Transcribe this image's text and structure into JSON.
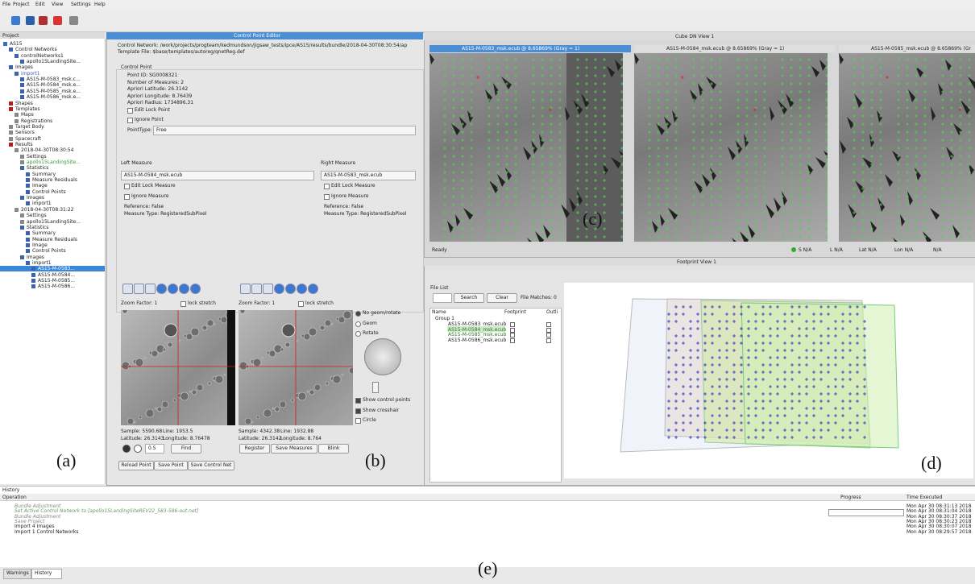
{
  "menu": [
    "File",
    "Project",
    "Edit",
    "View",
    "Settings",
    "Help"
  ],
  "project": {
    "title": "Project",
    "tree": [
      "AS15",
      "Control Networks",
      "controlNetworks1",
      "apollo15LandingSite...",
      "Images",
      "import1",
      "AS15-M-0583_msk.c...",
      "AS15-M-0584_msk.e...",
      "AS15-M-0585_msk.e...",
      "AS15-M-0586_msk.e...",
      "Shapes",
      "Templates",
      "Maps",
      "Registrations",
      "Target Body",
      "Sensors",
      "Spacecraft",
      "Results",
      "2018-04-30T08:30:54",
      "Settings",
      "apollo15LandingSite...",
      "Statistics",
      "Summary",
      "Measure Residuals",
      "Image",
      "Control Points",
      "Images",
      "import1",
      "2018-04-30T08:31:22",
      "Settings",
      "apollo15LandingSite...",
      "Statistics",
      "Summary",
      "Measure Residuals",
      "Image",
      "Control Points",
      "Images",
      "import1",
      "AS15-M-0583...",
      "AS15-M-0584...",
      "AS15-M-0585...",
      "AS15-M-0586..."
    ]
  },
  "editor": {
    "title": "Control Point Editor",
    "network": "Control Network: /work/projects/progteam/kedmundson/jigsaw_tests/ipce/AS15/results/bundle/2018-04-30T08:30:54/ap",
    "template": "Template File: $base/templates/autoreg/qnetReg.def",
    "section": "Control Point",
    "fields": [
      "Point ID:  SG0008321",
      "Number of Measures:  2",
      "Apriori Latitude:  26.3142",
      "Apriori Longitude:  8.76439",
      "Apriori Radius:  1734896.31"
    ],
    "checks": [
      "Edit Lock Point",
      "Ignore Point"
    ],
    "point_type_label": "PointType:",
    "point_type": "Free",
    "left": {
      "title": "Left Measure",
      "cube": "AS15-M-0584_msk.ecub",
      "checks": [
        "Edit Lock Measure",
        "Ignore Measure"
      ],
      "reference": "Reference: False",
      "type": "Measure Type: RegisteredSubPixel",
      "zoom": "Zoom Factor: 1",
      "lock": "lock stretch",
      "info": [
        "Sample: 5590.68",
        "Line: 1953.5",
        "Latitude: 26.3143",
        "Longitude: 8.76478"
      ]
    },
    "right": {
      "title": "Right Measure",
      "cube": "AS15-M-0583_msk.ecub",
      "checks": [
        "Edit Lock Measure",
        "Ignore Measure"
      ],
      "reference": "Reference: False",
      "type": "Measure Type: RegisteredSubPixel",
      "zoom": "Zoom Factor: 1",
      "lock": "lock stretch",
      "info": [
        "Sample: 4342.38",
        "Line: 1932.88",
        "Latitude: 26.3142",
        "Longitude: 8.764"
      ]
    },
    "radios": [
      "No geom/rotate",
      "Geom",
      "Rotate"
    ],
    "options": [
      "Show control points",
      "Show crosshair",
      "Circle"
    ],
    "step": "0.5",
    "find": "Find",
    "register_buttons": [
      "Register",
      "Save Measures",
      "Blink"
    ],
    "bottom_buttons": [
      "Reload Point",
      "Save Point",
      "Save Control Net"
    ]
  },
  "cube_view": {
    "title": "Cube DN View 1",
    "windows": [
      "AS15-M-0583_msk.ecub @ 8.65869% (Gray = 1)",
      "AS15-M-0584_msk.ecub @ 8.65869% (Gray = 1)",
      "AS15-M-0585_msk.ecub @ 8.65869% (Gr"
    ],
    "status": "Ready",
    "coords": [
      "S N/A",
      "L N/A",
      "Lat N/A",
      "Lon N/A",
      "N/A"
    ]
  },
  "footprint_view": {
    "title": "Footprint View 1",
    "file_list": "File List",
    "search": "Search",
    "clear": "Clear",
    "matches": "File Matches: 0",
    "columns": [
      "Name",
      "Footprint",
      "Outli"
    ],
    "group": "Group 1",
    "files": [
      "AS15-M-0583_msk.ecub",
      "AS15-M-0584_msk.ecub",
      "AS15-M-0585_msk.ecub",
      "AS15-M-0586_msk.ecub"
    ]
  },
  "history": {
    "title": "History",
    "columns": [
      "Operation",
      "Progress",
      "Time Executed"
    ],
    "rows": [
      [
        "Bundle Adjustment",
        "Mon Apr 30 08:31:13 2018"
      ],
      [
        "Set Active Control Network to [apollo15LandingSiteREV22_583-586-out.net]",
        "Mon Apr 30 08:31:04 2018"
      ],
      [
        "Bundle Adjustment",
        "Mon Apr 30 08:30:37 2018"
      ],
      [
        "Save Project",
        "Mon Apr 30 08:30:23 2018"
      ],
      [
        "Import 4 Images",
        "Mon Apr 30 08:30:07 2018"
      ],
      [
        "Import 1 Control Networks",
        "Mon Apr 30 08:29:57 2018"
      ]
    ],
    "tabs": [
      "Warnings",
      "History"
    ]
  },
  "labels": [
    "(a)",
    "(b)",
    "(c)",
    "(d)",
    "(e)"
  ]
}
